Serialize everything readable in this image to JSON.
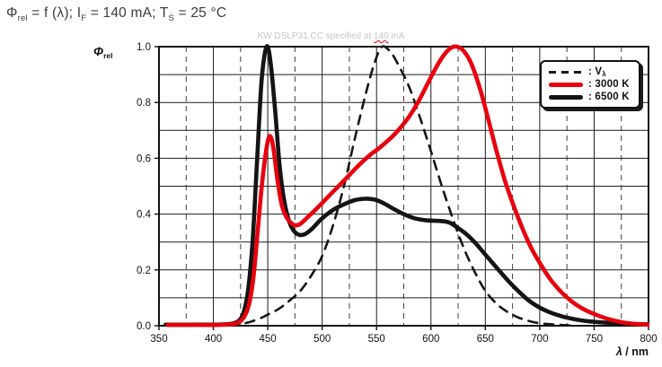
{
  "title": {
    "segments": [
      {
        "t": "Φ"
      },
      {
        "t": "rel",
        "sub": true
      },
      {
        "t": " = f (λ); I"
      },
      {
        "t": "F",
        "sub": true
      },
      {
        "t": " = 140 mA; T",
        "pre_space": false
      },
      {
        "t": "S",
        "sub": true
      },
      {
        "t": " = 25 °C"
      }
    ]
  },
  "watermark": {
    "segments": [
      {
        "t": "KW DSLP31.CC specified at "
      },
      {
        "t": "140",
        "mark": true
      },
      {
        "t": " mA"
      }
    ]
  },
  "axes": {
    "y_label_segments": [
      {
        "t": "Φ",
        "italic": true
      },
      {
        "t": "rel",
        "sub": true
      }
    ],
    "x_label_segments": [
      {
        "t": "λ",
        "italic": true
      },
      {
        "t": " / nm"
      }
    ]
  },
  "legend": {
    "items": [
      {
        "key": "v-lambda",
        "line": "dashed",
        "color": "#1a1a1a",
        "segments": [
          {
            "t": ": V"
          },
          {
            "t": "λ",
            "sub": true
          }
        ]
      },
      {
        "key": "3000k",
        "line": "solid",
        "color": "#e8000d",
        "segments": [
          {
            "t": ": 3000 K"
          }
        ]
      },
      {
        "key": "6500k",
        "line": "solid",
        "color": "#141414",
        "segments": [
          {
            "t": ": 6500 K"
          }
        ]
      }
    ]
  },
  "chart_data": {
    "type": "line",
    "title": "Φrel = f (λ); IF = 140 mA; TS = 25 °C",
    "subtitle": "KW DSLP31.CC specified at 140 mA",
    "xlabel": "λ / nm",
    "ylabel": "Φrel",
    "xlim": [
      350,
      800
    ],
    "ylim": [
      0,
      1
    ],
    "grid": {
      "x_major_step": 50,
      "x_minor_step": 25,
      "y_step": 0.1
    },
    "legend_position": "top-right",
    "x_ticks": [
      350,
      400,
      450,
      500,
      550,
      600,
      650,
      700,
      750,
      800
    ],
    "y_ticks": [
      {
        "v": 1.0,
        "label": "1.0"
      },
      {
        "v": 0.8,
        "label": "0.8"
      },
      {
        "v": 0.6,
        "label": "0.6"
      },
      {
        "v": 0.4,
        "label": "0.4"
      },
      {
        "v": 0.2,
        "label": "0.2"
      },
      {
        "v": 0.0,
        "label": "0.0"
      }
    ],
    "series": [
      {
        "name": "Vλ",
        "style": "dashed",
        "color": "#161616",
        "width": 2.6,
        "dash": "10 8",
        "points": [
          [
            415,
            0.002
          ],
          [
            425,
            0.006
          ],
          [
            435,
            0.015
          ],
          [
            445,
            0.03
          ],
          [
            450,
            0.04
          ],
          [
            460,
            0.06
          ],
          [
            470,
            0.09
          ],
          [
            480,
            0.125
          ],
          [
            490,
            0.18
          ],
          [
            500,
            0.25
          ],
          [
            510,
            0.36
          ],
          [
            520,
            0.5
          ],
          [
            530,
            0.67
          ],
          [
            540,
            0.83
          ],
          [
            548,
            0.94
          ],
          [
            555,
            1.0
          ],
          [
            563,
            0.98
          ],
          [
            570,
            0.935
          ],
          [
            580,
            0.855
          ],
          [
            590,
            0.745
          ],
          [
            600,
            0.625
          ],
          [
            610,
            0.5
          ],
          [
            620,
            0.385
          ],
          [
            630,
            0.28
          ],
          [
            640,
            0.195
          ],
          [
            650,
            0.125
          ],
          [
            660,
            0.08
          ],
          [
            670,
            0.05
          ],
          [
            680,
            0.03
          ],
          [
            690,
            0.017
          ],
          [
            700,
            0.009
          ],
          [
            715,
            0.004
          ],
          [
            730,
            0.001
          ]
        ]
      },
      {
        "name": "6500 K",
        "style": "solid",
        "color": "#141414",
        "width": 4.6,
        "dash": "",
        "points": [
          [
            356,
            0.004
          ],
          [
            380,
            0.004
          ],
          [
            400,
            0.004
          ],
          [
            410,
            0.005
          ],
          [
            418,
            0.008
          ],
          [
            424,
            0.02
          ],
          [
            428,
            0.05
          ],
          [
            432,
            0.13
          ],
          [
            436,
            0.3
          ],
          [
            440,
            0.58
          ],
          [
            444,
            0.86
          ],
          [
            447,
            0.97
          ],
          [
            450,
            1.0
          ],
          [
            453,
            0.93
          ],
          [
            457,
            0.76
          ],
          [
            461,
            0.57
          ],
          [
            465,
            0.45
          ],
          [
            470,
            0.37
          ],
          [
            475,
            0.335
          ],
          [
            480,
            0.325
          ],
          [
            485,
            0.33
          ],
          [
            490,
            0.345
          ],
          [
            495,
            0.365
          ],
          [
            500,
            0.385
          ],
          [
            510,
            0.415
          ],
          [
            520,
            0.435
          ],
          [
            530,
            0.45
          ],
          [
            540,
            0.455
          ],
          [
            548,
            0.452
          ],
          [
            556,
            0.44
          ],
          [
            565,
            0.42
          ],
          [
            575,
            0.4
          ],
          [
            585,
            0.385
          ],
          [
            595,
            0.378
          ],
          [
            605,
            0.376
          ],
          [
            612,
            0.374
          ],
          [
            618,
            0.368
          ],
          [
            625,
            0.35
          ],
          [
            632,
            0.33
          ],
          [
            640,
            0.3
          ],
          [
            650,
            0.255
          ],
          [
            660,
            0.21
          ],
          [
            670,
            0.165
          ],
          [
            680,
            0.125
          ],
          [
            690,
            0.09
          ],
          [
            700,
            0.065
          ],
          [
            710,
            0.047
          ],
          [
            720,
            0.034
          ],
          [
            730,
            0.025
          ],
          [
            740,
            0.018
          ],
          [
            750,
            0.014
          ],
          [
            765,
            0.01
          ],
          [
            780,
            0.007
          ],
          [
            800,
            0.005
          ]
        ]
      },
      {
        "name": "3000 K",
        "style": "solid",
        "color": "#e8000d",
        "width": 4.6,
        "dash": "",
        "points": [
          [
            358,
            0.003
          ],
          [
            380,
            0.003
          ],
          [
            405,
            0.003
          ],
          [
            415,
            0.005
          ],
          [
            422,
            0.01
          ],
          [
            428,
            0.03
          ],
          [
            433,
            0.08
          ],
          [
            437,
            0.18
          ],
          [
            441,
            0.35
          ],
          [
            445,
            0.52
          ],
          [
            449,
            0.64
          ],
          [
            452,
            0.68
          ],
          [
            455,
            0.64
          ],
          [
            459,
            0.52
          ],
          [
            463,
            0.43
          ],
          [
            467,
            0.39
          ],
          [
            471,
            0.37
          ],
          [
            475,
            0.36
          ],
          [
            480,
            0.365
          ],
          [
            487,
            0.39
          ],
          [
            495,
            0.42
          ],
          [
            505,
            0.46
          ],
          [
            515,
            0.5
          ],
          [
            525,
            0.54
          ],
          [
            535,
            0.58
          ],
          [
            545,
            0.615
          ],
          [
            552,
            0.635
          ],
          [
            558,
            0.655
          ],
          [
            565,
            0.68
          ],
          [
            572,
            0.71
          ],
          [
            580,
            0.75
          ],
          [
            588,
            0.8
          ],
          [
            596,
            0.86
          ],
          [
            604,
            0.92
          ],
          [
            611,
            0.965
          ],
          [
            618,
            0.995
          ],
          [
            624,
            1.0
          ],
          [
            630,
            0.985
          ],
          [
            637,
            0.94
          ],
          [
            645,
            0.85
          ],
          [
            652,
            0.75
          ],
          [
            660,
            0.63
          ],
          [
            668,
            0.52
          ],
          [
            676,
            0.43
          ],
          [
            684,
            0.35
          ],
          [
            692,
            0.28
          ],
          [
            700,
            0.225
          ],
          [
            710,
            0.165
          ],
          [
            720,
            0.12
          ],
          [
            730,
            0.085
          ],
          [
            740,
            0.06
          ],
          [
            750,
            0.042
          ],
          [
            762,
            0.025
          ],
          [
            775,
            0.013
          ],
          [
            788,
            0.006
          ],
          [
            800,
            0.004
          ]
        ]
      }
    ]
  }
}
